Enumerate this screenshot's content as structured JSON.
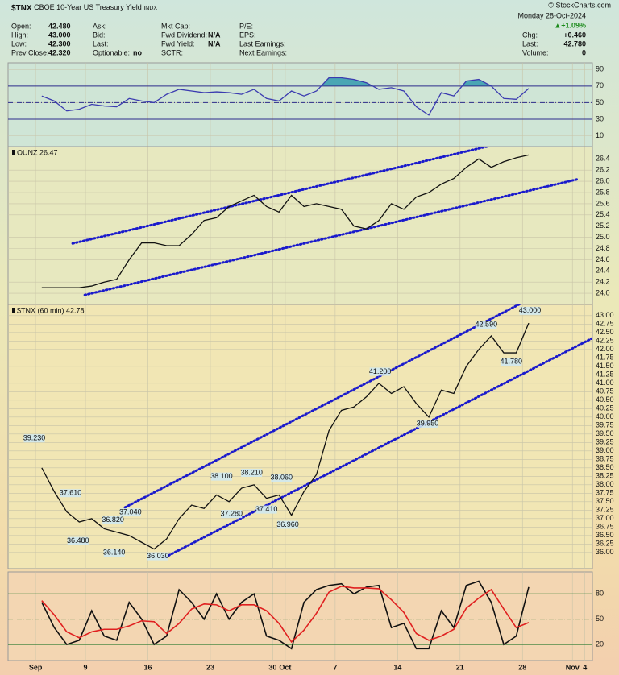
{
  "header": {
    "symbol": "$TNX",
    "name": "CBOE 10-Year US Treasury Yield",
    "exchange": "INDX",
    "source": "© StockCharts.com",
    "date": "Monday 28-Oct-2024",
    "change_pct": "▲+1.09%",
    "fields": [
      [
        {
          "label": "Open:",
          "value": "42.480"
        },
        {
          "label": "High:",
          "value": "43.000"
        },
        {
          "label": "Low:",
          "value": "42.300"
        },
        {
          "label": "Prev Close:",
          "value": "42.320"
        }
      ],
      [
        {
          "label": "Ask:"
        },
        {
          "label": "Bid:"
        },
        {
          "label": "Last:"
        },
        {
          "label": "Optionable:",
          "value": "no"
        }
      ],
      [
        {
          "label": "Mkt Cap:"
        },
        {
          "label": "Fwd Dividend:",
          "value": "N/A"
        },
        {
          "label": "Fwd Yield:",
          "value": "N/A"
        },
        {
          "label": "SCTR:"
        }
      ],
      [
        {
          "label": "P/E:"
        },
        {
          "label": "EPS:"
        },
        {
          "label": "Last Earnings:"
        },
        {
          "label": "Next Earnings:"
        }
      ]
    ],
    "quote": [
      {
        "label": "Chg:",
        "value": "+0.460"
      },
      {
        "label": "Last:",
        "value": "42.780"
      },
      {
        "label": "Volume:",
        "value": "0"
      }
    ]
  },
  "chart_data": [
    {
      "type": "line",
      "xlim": [
        -2.2,
        44.6
      ],
      "ylim": [
        -3,
        98
      ],
      "yticks": [
        10,
        30,
        50,
        70,
        90
      ],
      "xticks": [
        {
          "value": 0,
          "label": "Sep"
        },
        {
          "value": 4,
          "label": "9"
        },
        {
          "value": 9,
          "label": "16"
        },
        {
          "value": 14,
          "label": "23"
        },
        {
          "value": 19,
          "label": "30"
        },
        {
          "value": 20,
          "label": "Oct"
        },
        {
          "value": 24,
          "label": "7"
        },
        {
          "value": 29,
          "label": "14"
        },
        {
          "value": 34,
          "label": "21"
        },
        {
          "value": 39,
          "label": "28"
        },
        {
          "value": 43,
          "label": "Nov"
        },
        {
          "value": 44,
          "label": "4"
        }
      ],
      "x": [
        0.5,
        1.5,
        2.5,
        3.5,
        4.5,
        5.5,
        6.5,
        7.5,
        8.5,
        9.5,
        10.5,
        11.5,
        12.5,
        13.5,
        14.5,
        15.5,
        16.5,
        17.5,
        18.5,
        19.5,
        20.5,
        21.5,
        22.5,
        23.5,
        24.5,
        25.5,
        26.5,
        27.5,
        28.5,
        29.5,
        30.5,
        31.5,
        32.5,
        33.5,
        34.5,
        35.5,
        36.5,
        37.5,
        38.5,
        39.5
      ],
      "reference_lines": [
        {
          "value": 70,
          "style": "solid",
          "color": "#2c2c8c",
          "fill_above": "#4aa6b4"
        },
        {
          "value": 50,
          "style": "dashdot",
          "color": "#2c2c8c"
        },
        {
          "value": 30,
          "style": "solid",
          "color": "#2c2c8c"
        }
      ],
      "series": [
        {
          "color": "#3b3bb0",
          "values": [
            58,
            52,
            40,
            42,
            48,
            46,
            45,
            55,
            52,
            50,
            60,
            66,
            64,
            62,
            63,
            62,
            60,
            66,
            55,
            52,
            64,
            58,
            64,
            80,
            80,
            78,
            74,
            66,
            68,
            64,
            45,
            35,
            62,
            58,
            76,
            78,
            70,
            55,
            54,
            67
          ]
        }
      ]
    },
    {
      "type": "line",
      "label": "OUNZ 26.47",
      "xlim": [
        -2.2,
        44.6
      ],
      "ylim": [
        23.8,
        26.62
      ],
      "yticks": [
        {
          "value": 24,
          "label": "24.0"
        },
        24.2,
        24.4,
        24.6,
        24.8,
        {
          "value": 25,
          "label": "25.0"
        },
        25.2,
        25.4,
        25.6,
        25.8,
        {
          "value": 26,
          "label": "26.0"
        },
        26.2,
        26.4
      ],
      "xticks": [
        {
          "value": 0,
          "label": "Sep"
        },
        {
          "value": 4,
          "label": "9"
        },
        {
          "value": 9,
          "label": "16"
        },
        {
          "value": 14,
          "label": "23"
        },
        {
          "value": 19,
          "label": "30"
        },
        {
          "value": 20,
          "label": "Oct"
        },
        {
          "value": 24,
          "label": "7"
        },
        {
          "value": 29,
          "label": "14"
        },
        {
          "value": 34,
          "label": "21"
        },
        {
          "value": 39,
          "label": "28"
        },
        {
          "value": 43,
          "label": "Nov"
        },
        {
          "value": 44,
          "label": "4"
        }
      ],
      "x": [
        0.5,
        1.5,
        2.5,
        3.5,
        4.5,
        5.5,
        6.5,
        7.5,
        8.5,
        9.5,
        10.5,
        11.5,
        12.5,
        13.5,
        14.5,
        15.5,
        16.5,
        17.5,
        18.5,
        19.5,
        20.5,
        21.5,
        22.5,
        23.5,
        24.5,
        25.5,
        26.5,
        27.5,
        28.5,
        29.5,
        30.5,
        31.5,
        32.5,
        33.5,
        34.5,
        35.5,
        36.5,
        37.5,
        38.5,
        39.5
      ],
      "series": [
        {
          "color": "#111111",
          "values": [
            24.1,
            24.1,
            24.1,
            24.1,
            24.13,
            24.2,
            24.25,
            24.6,
            24.9,
            24.9,
            24.85,
            24.85,
            25.05,
            25.3,
            25.35,
            25.55,
            25.65,
            25.75,
            25.55,
            25.45,
            25.75,
            25.55,
            25.6,
            25.55,
            25.5,
            25.2,
            25.15,
            25.3,
            25.6,
            25.5,
            25.72,
            25.8,
            25.95,
            26.05,
            26.25,
            26.4,
            26.25,
            26.35,
            26.42,
            26.47
          ]
        }
      ],
      "trendlines": [
        {
          "color": "#1a1acc",
          "x": [
            2.97,
            42.65
          ],
          "values": [
            24.89,
            26.96
          ]
        },
        {
          "color": "#1a1acc",
          "x": [
            3.94,
            43.48
          ],
          "values": [
            23.97,
            26.04
          ]
        }
      ]
    },
    {
      "type": "line",
      "label": "$TNX (60 min) 42.78",
      "show_xtick_labels": true,
      "xlim": [
        -2.2,
        44.6
      ],
      "ylim": [
        35.52,
        43.33
      ],
      "yticks": [
        {
          "value": 36,
          "label": "36.00"
        },
        {
          "value": 36.25,
          "label": "36.25"
        },
        {
          "value": 36.5,
          "label": "36.50"
        },
        {
          "value": 36.75,
          "label": "36.75"
        },
        {
          "value": 37,
          "label": "37.00"
        },
        {
          "value": 37.25,
          "label": "37.25"
        },
        {
          "value": 37.5,
          "label": "37.50"
        },
        {
          "value": 37.75,
          "label": "37.75"
        },
        {
          "value": 38,
          "label": "38.00"
        },
        {
          "value": 38.25,
          "label": "38.25"
        },
        {
          "value": 38.5,
          "label": "38.50"
        },
        {
          "value": 38.75,
          "label": "38.75"
        },
        {
          "value": 39,
          "label": "39.00"
        },
        {
          "value": 39.25,
          "label": "39.25"
        },
        {
          "value": 39.5,
          "label": "39.50"
        },
        {
          "value": 39.75,
          "label": "39.75"
        },
        {
          "value": 40,
          "label": "40.00"
        },
        {
          "value": 40.25,
          "label": "40.25"
        },
        {
          "value": 40.5,
          "label": "40.50"
        },
        {
          "value": 40.75,
          "label": "40.75"
        },
        {
          "value": 41,
          "label": "41.00"
        },
        {
          "value": 41.25,
          "label": "41.25"
        },
        {
          "value": 41.5,
          "label": "41.50"
        },
        {
          "value": 41.75,
          "label": "41.75"
        },
        {
          "value": 42,
          "label": "42.00"
        },
        {
          "value": 42.25,
          "label": "42.25"
        },
        {
          "value": 42.5,
          "label": "42.50"
        },
        {
          "value": 42.75,
          "label": "42.75"
        },
        {
          "value": 43,
          "label": "43.00"
        }
      ],
      "xticks": [
        {
          "value": 0,
          "label": "Sep"
        },
        {
          "value": 4,
          "label": "9"
        },
        {
          "value": 9,
          "label": "16"
        },
        {
          "value": 14,
          "label": "23"
        },
        {
          "value": 19,
          "label": "30"
        },
        {
          "value": 20,
          "label": "Oct"
        },
        {
          "value": 24,
          "label": "7"
        },
        {
          "value": 29,
          "label": "14"
        },
        {
          "value": 34,
          "label": "21"
        },
        {
          "value": 39,
          "label": "28"
        },
        {
          "value": 43,
          "label": "Nov"
        },
        {
          "value": 44,
          "label": "4"
        }
      ],
      "x": [
        0.5,
        1.5,
        2.5,
        3.5,
        4.5,
        5.5,
        6.5,
        7.5,
        8.5,
        9.5,
        10.5,
        11.5,
        12.5,
        13.5,
        14.5,
        15.5,
        16.5,
        17.5,
        18.5,
        19.5,
        20.5,
        21.5,
        22.5,
        23.5,
        24.5,
        25.5,
        26.5,
        27.5,
        28.5,
        29.5,
        30.5,
        31.5,
        32.5,
        33.5,
        34.5,
        35.5,
        36.5,
        37.5,
        38.5,
        39.5
      ],
      "series": [
        {
          "color": "#111111",
          "values": [
            38.5,
            37.8,
            37.2,
            36.9,
            37.0,
            36.7,
            36.6,
            36.5,
            36.3,
            36.1,
            36.4,
            37.0,
            37.4,
            37.3,
            37.7,
            37.5,
            37.9,
            38.0,
            37.6,
            37.7,
            37.1,
            37.8,
            38.3,
            39.6,
            40.2,
            40.3,
            40.6,
            41.0,
            40.7,
            40.9,
            40.4,
            40.0,
            40.8,
            40.7,
            41.5,
            42.0,
            42.4,
            41.9,
            41.9,
            42.78
          ]
        }
      ],
      "trendlines": [
        {
          "color": "#1a1acc",
          "x": [
            7.16,
            42.5
          ],
          "values": [
            37.33,
            44.05
          ]
        },
        {
          "color": "#1a1acc",
          "x": [
            10.39,
            44.58
          ],
          "values": [
            35.86,
            42.33
          ]
        }
      ],
      "annotations": [
        {
          "x": -0.1,
          "value": 39.23,
          "label": "39.230"
        },
        {
          "x": 2.8,
          "value": 37.61,
          "label": "37.610"
        },
        {
          "x": 6.2,
          "value": 36.82,
          "label": "36.820"
        },
        {
          "x": 3.4,
          "value": 36.48,
          "label": "36.480"
        },
        {
          "x": 6.3,
          "value": 36.14,
          "label": "36.140"
        },
        {
          "x": 9.8,
          "value": 36.03,
          "label": "36.030"
        },
        {
          "x": 7.6,
          "value": 37.04,
          "label": "37.040"
        },
        {
          "x": 14.9,
          "value": 38.1,
          "label": "38.100"
        },
        {
          "x": 15.7,
          "value": 37.28,
          "label": "37.280"
        },
        {
          "x": 17.3,
          "value": 38.21,
          "label": "38.210"
        },
        {
          "x": 18.5,
          "value": 37.41,
          "label": "37.410"
        },
        {
          "x": 19.7,
          "value": 38.06,
          "label": "38.060"
        },
        {
          "x": 20.2,
          "value": 36.96,
          "label": "36.960"
        },
        {
          "x": 27.6,
          "value": 41.2,
          "label": "41.200"
        },
        {
          "x": 31.4,
          "value": 39.95,
          "label": "39.950"
        },
        {
          "x": 36.1,
          "value": 42.59,
          "label": "42.590"
        },
        {
          "x": 38.1,
          "value": 41.78,
          "label": "41.780"
        },
        {
          "x": 39.6,
          "value": 43,
          "label": "43.000"
        }
      ]
    },
    {
      "type": "line",
      "show_xtick_labels": true,
      "xlim": [
        -2.2,
        44.6
      ],
      "ylim": [
        1,
        106
      ],
      "yticks": [
        20,
        50,
        80
      ],
      "xticks": [
        {
          "value": 0,
          "label": "Sep"
        },
        {
          "value": 4,
          "label": "9"
        },
        {
          "value": 9,
          "label": "16"
        },
        {
          "value": 14,
          "label": "23"
        },
        {
          "value": 19,
          "label": "30"
        },
        {
          "value": 20,
          "label": "Oct"
        },
        {
          "value": 24,
          "label": "7"
        },
        {
          "value": 29,
          "label": "14"
        },
        {
          "value": 34,
          "label": "21"
        },
        {
          "value": 39,
          "label": "28"
        },
        {
          "value": 43,
          "label": "Nov"
        },
        {
          "value": 44,
          "label": "4"
        }
      ],
      "x": [
        0.5,
        1.5,
        2.5,
        3.5,
        4.5,
        5.5,
        6.5,
        7.5,
        8.5,
        9.5,
        10.5,
        11.5,
        12.5,
        13.5,
        14.5,
        15.5,
        16.5,
        17.5,
        18.5,
        19.5,
        20.5,
        21.5,
        22.5,
        23.5,
        24.5,
        25.5,
        26.5,
        27.5,
        28.5,
        29.5,
        30.5,
        31.5,
        32.5,
        33.5,
        34.5,
        35.5,
        36.5,
        37.5,
        38.5,
        39.5
      ],
      "reference_lines": [
        {
          "value": 80,
          "style": "solid",
          "color": "#2e7d32"
        },
        {
          "value": 50,
          "style": "dashdot",
          "color": "#2e7d32"
        },
        {
          "value": 20,
          "style": "solid",
          "color": "#2e7d32"
        }
      ],
      "series": [
        {
          "color": "#111111",
          "values": [
            70,
            40,
            20,
            25,
            60,
            30,
            25,
            70,
            50,
            20,
            30,
            85,
            70,
            50,
            80,
            50,
            70,
            80,
            30,
            25,
            15,
            70,
            85,
            90,
            92,
            80,
            88,
            90,
            40,
            45,
            15,
            15,
            60,
            40,
            90,
            95,
            70,
            20,
            30,
            88
          ]
        },
        {
          "color": "#e02020",
          "values": [
            72,
            55,
            35,
            28,
            35,
            38,
            38,
            42,
            48,
            47,
            33,
            45,
            62,
            68,
            67,
            60,
            67,
            67,
            60,
            45,
            23,
            37,
            57,
            82,
            89,
            87,
            87,
            86,
            73,
            58,
            33,
            25,
            30,
            38,
            63,
            75,
            85,
            62,
            40,
            46
          ]
        }
      ]
    }
  ]
}
